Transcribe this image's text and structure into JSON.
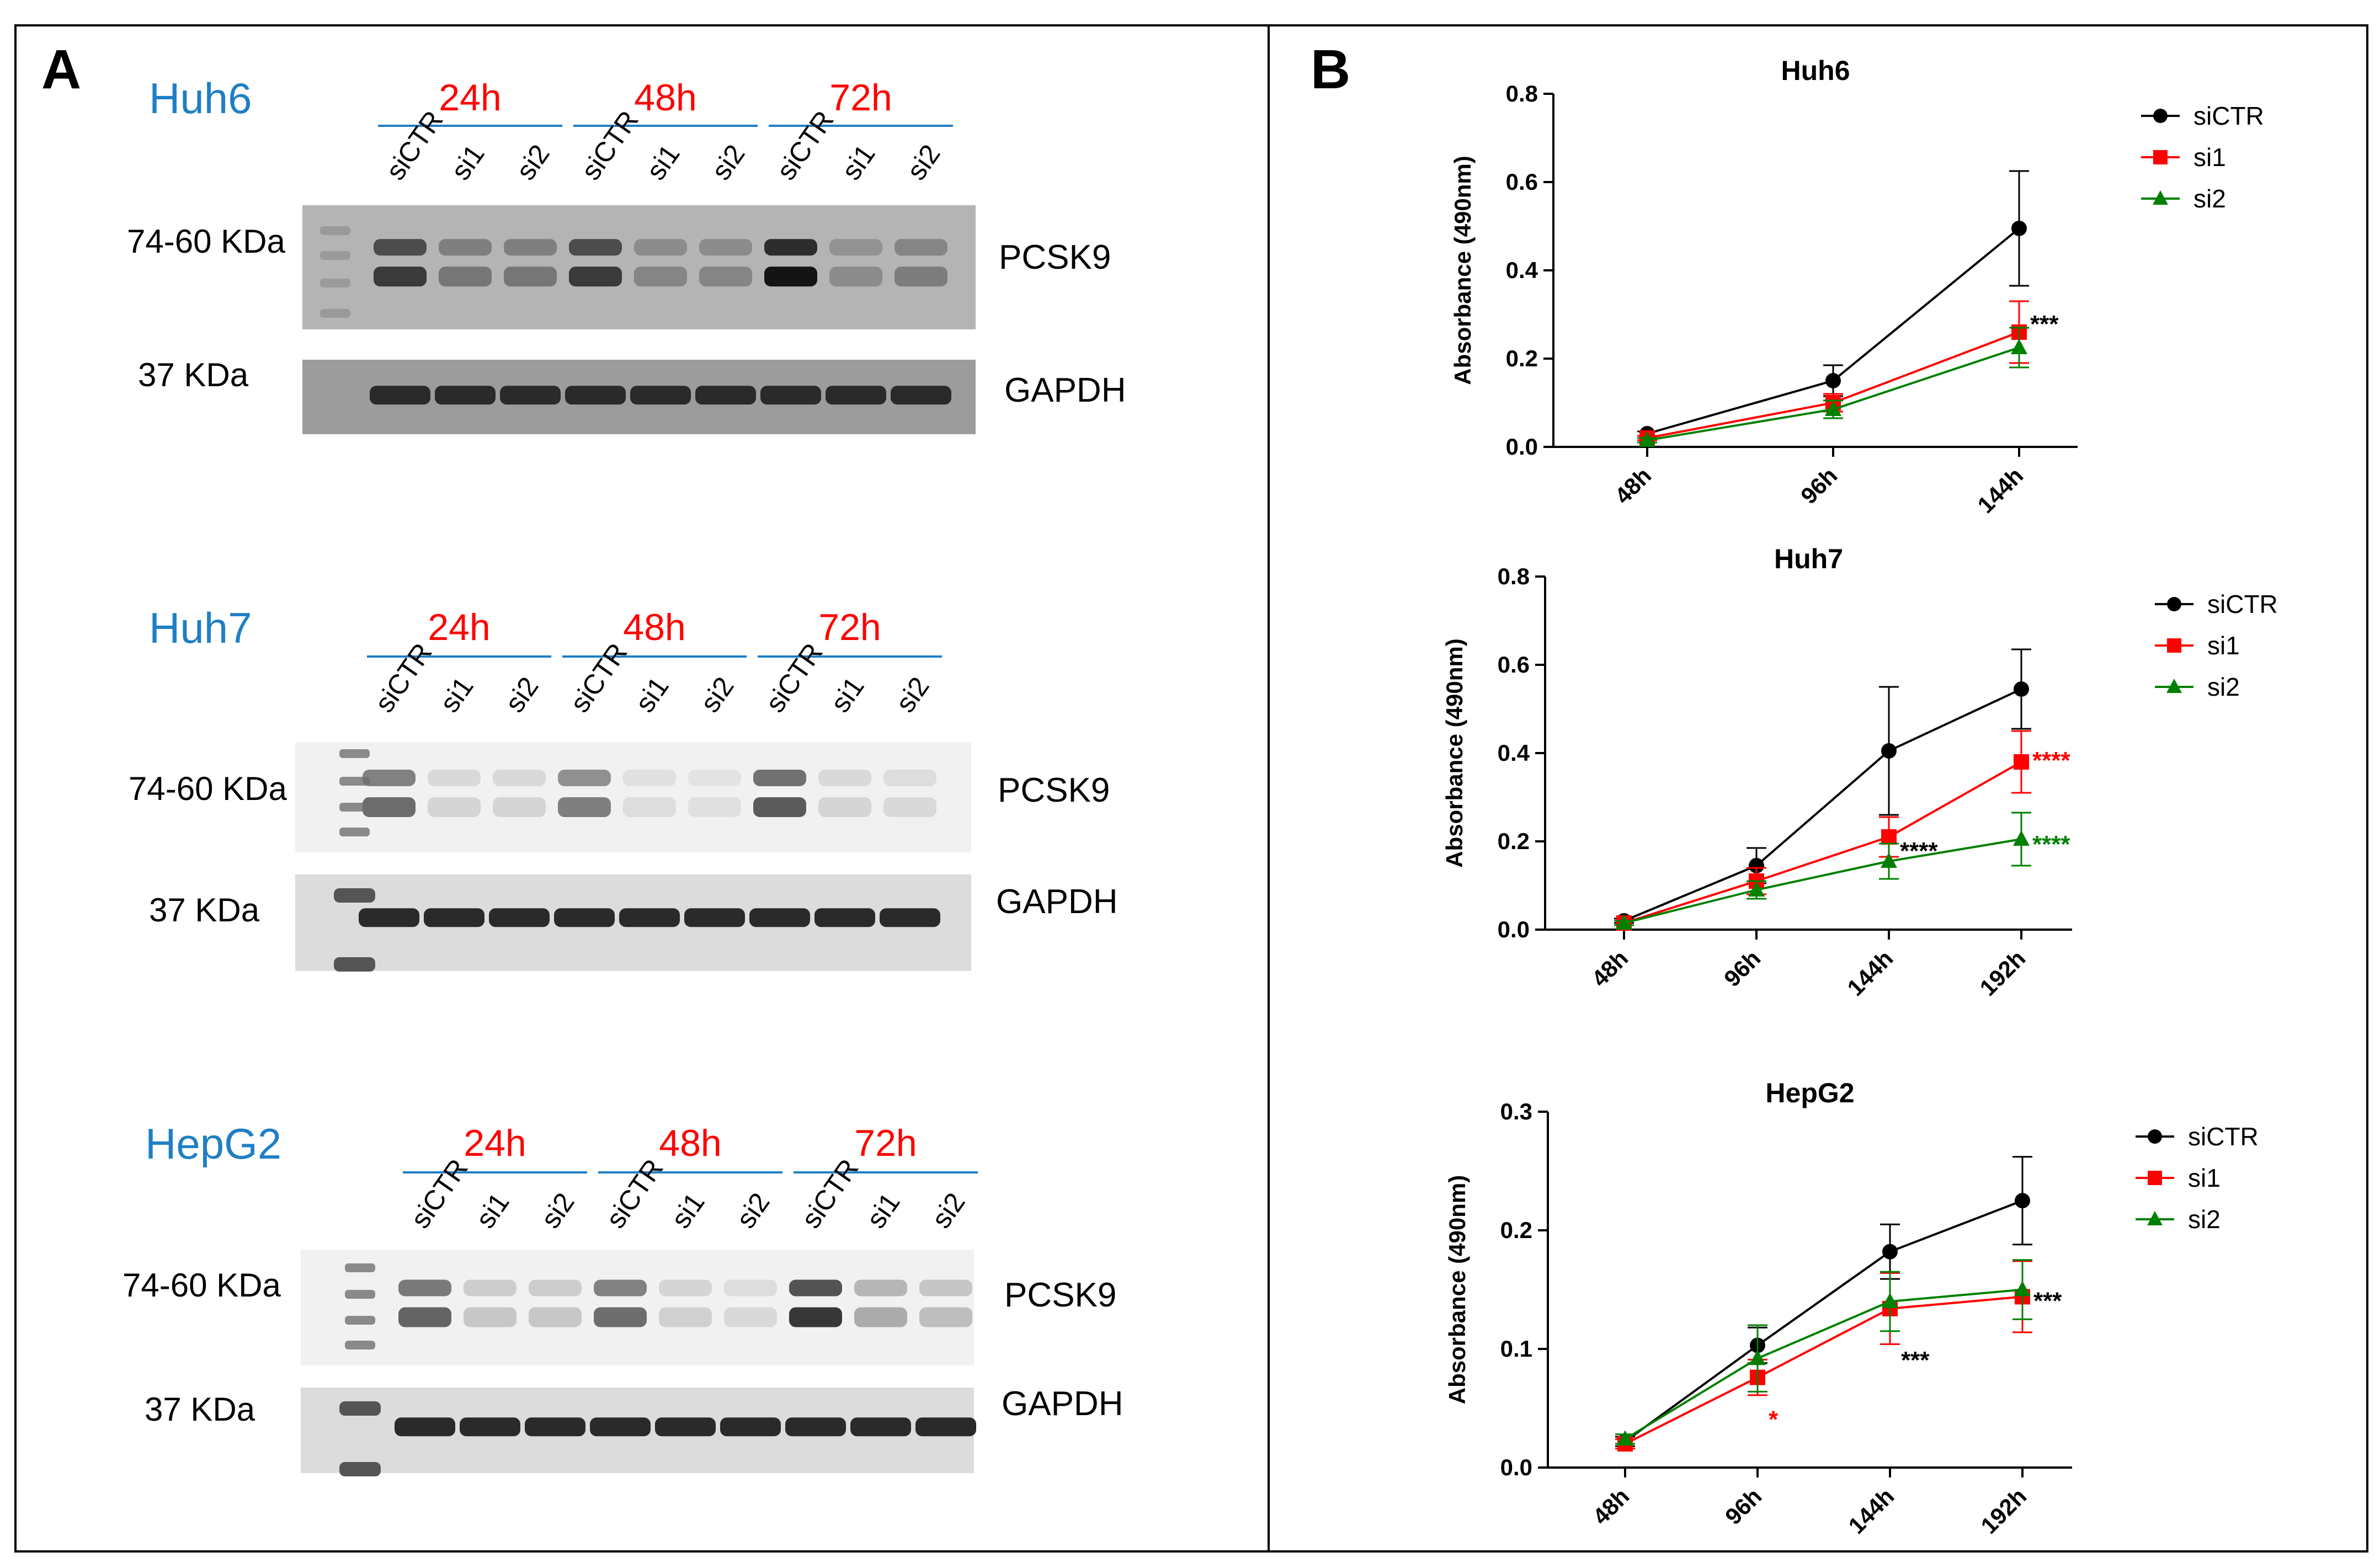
{
  "panel_a": {
    "letter": "A",
    "blots": [
      {
        "cell_line": "Huh6",
        "timepoints": [
          "24h",
          "48h",
          "72h"
        ],
        "lanes": [
          "siCTR",
          "si1",
          "si2",
          "siCTR",
          "si1",
          "si2",
          "siCTR",
          "si1",
          "si2"
        ],
        "pcsk9_mw": "74-60 KDa",
        "pcsk9_label": "PCSK9",
        "gapdh_mw": "37 KDa",
        "gapdh_label": "GAPDH"
      },
      {
        "cell_line": "Huh7",
        "timepoints": [
          "24h",
          "48h",
          "72h"
        ],
        "lanes": [
          "siCTR",
          "si1",
          "si2",
          "siCTR",
          "si1",
          "si2",
          "siCTR",
          "si1",
          "si2"
        ],
        "pcsk9_mw": "74-60 KDa",
        "pcsk9_label": "PCSK9",
        "gapdh_mw": "37 KDa",
        "gapdh_label": "GAPDH"
      },
      {
        "cell_line": "HepG2",
        "timepoints": [
          "24h",
          "48h",
          "72h"
        ],
        "lanes": [
          "siCTR",
          "si1",
          "si2",
          "siCTR",
          "si1",
          "si2",
          "siCTR",
          "si1",
          "si2"
        ],
        "pcsk9_mw": "74-60 KDa",
        "pcsk9_label": "PCSK9",
        "gapdh_mw": "37 KDa",
        "gapdh_label": "GAPDH"
      }
    ]
  },
  "panel_b": {
    "letter": "B"
  },
  "colors": {
    "siCTR": "#000000",
    "si1": "#ff0000",
    "si2": "#008000",
    "cell_line": "#1f7fc4",
    "timepoint": "#ff0000"
  },
  "chart_data": [
    {
      "type": "line",
      "title": "Huh6",
      "xlabel": "",
      "ylabel": "Absorbance (490nm)",
      "categories": [
        "48h",
        "96h",
        "144h"
      ],
      "ylim": [
        0,
        0.8
      ],
      "yticks": [
        "0.0",
        "0.2",
        "0.4",
        "0.6",
        "0.8"
      ],
      "legend": "top-right",
      "series": [
        {
          "name": "siCTR",
          "values": [
            0.03,
            0.15,
            0.495
          ],
          "errors": [
            0.005,
            0.035,
            0.13
          ]
        },
        {
          "name": "si1",
          "values": [
            0.02,
            0.1,
            0.26
          ],
          "errors": [
            0.005,
            0.02,
            0.07
          ]
        },
        {
          "name": "si2",
          "values": [
            0.015,
            0.085,
            0.225
          ],
          "errors": [
            0.005,
            0.02,
            0.045
          ]
        }
      ],
      "annotations": [
        {
          "text": "***",
          "category": "144h",
          "y": 0.285,
          "color": "#000000"
        }
      ]
    },
    {
      "type": "line",
      "title": "Huh7",
      "xlabel": "",
      "ylabel": "Absorbance (490nm)",
      "categories": [
        "48h",
        "96h",
        "144h",
        "192h"
      ],
      "ylim": [
        0,
        0.8
      ],
      "yticks": [
        "0.0",
        "0.2",
        "0.4",
        "0.6",
        "0.8"
      ],
      "legend": "top-right",
      "series": [
        {
          "name": "siCTR",
          "values": [
            0.02,
            0.145,
            0.405,
            0.545
          ],
          "errors": [
            0.005,
            0.04,
            0.145,
            0.09
          ]
        },
        {
          "name": "si1",
          "values": [
            0.015,
            0.11,
            0.21,
            0.38
          ],
          "errors": [
            0.005,
            0.03,
            0.045,
            0.07
          ]
        },
        {
          "name": "si2",
          "values": [
            0.015,
            0.09,
            0.155,
            0.205
          ],
          "errors": [
            0.005,
            0.02,
            0.04,
            0.06
          ]
        }
      ],
      "annotations": [
        {
          "text": "****",
          "category": "144h",
          "y": 0.185,
          "color": "#000000"
        },
        {
          "text": "****",
          "category": "192h",
          "y": 0.39,
          "color": "#ff0000"
        },
        {
          "text": "****",
          "category": "192h",
          "y": 0.2,
          "color": "#008000"
        }
      ]
    },
    {
      "type": "line",
      "title": "HepG2",
      "xlabel": "",
      "ylabel": "Absorbance (490nm)",
      "categories": [
        "48h",
        "96h",
        "144h",
        "192h"
      ],
      "ylim": [
        0,
        0.3
      ],
      "yticks": [
        "0.0",
        "0.1",
        "0.2",
        "0.3"
      ],
      "legend": "top-right",
      "series": [
        {
          "name": "siCTR",
          "values": [
            0.022,
            0.103,
            0.182,
            0.225
          ],
          "errors": [
            0.004,
            0.015,
            0.023,
            0.037
          ]
        },
        {
          "name": "si1",
          "values": [
            0.02,
            0.076,
            0.134,
            0.144
          ],
          "errors": [
            0.004,
            0.015,
            0.03,
            0.03
          ]
        },
        {
          "name": "si2",
          "values": [
            0.024,
            0.092,
            0.14,
            0.15
          ],
          "errors": [
            0.004,
            0.028,
            0.025,
            0.025
          ]
        }
      ],
      "annotations": [
        {
          "text": "*",
          "category": "96h",
          "y": 0.043,
          "color": "#ff0000"
        },
        {
          "text": "***",
          "category": "144h",
          "y": 0.093,
          "color": "#000000"
        },
        {
          "text": "***",
          "category": "192h",
          "y": 0.143,
          "color": "#000000"
        }
      ]
    }
  ]
}
